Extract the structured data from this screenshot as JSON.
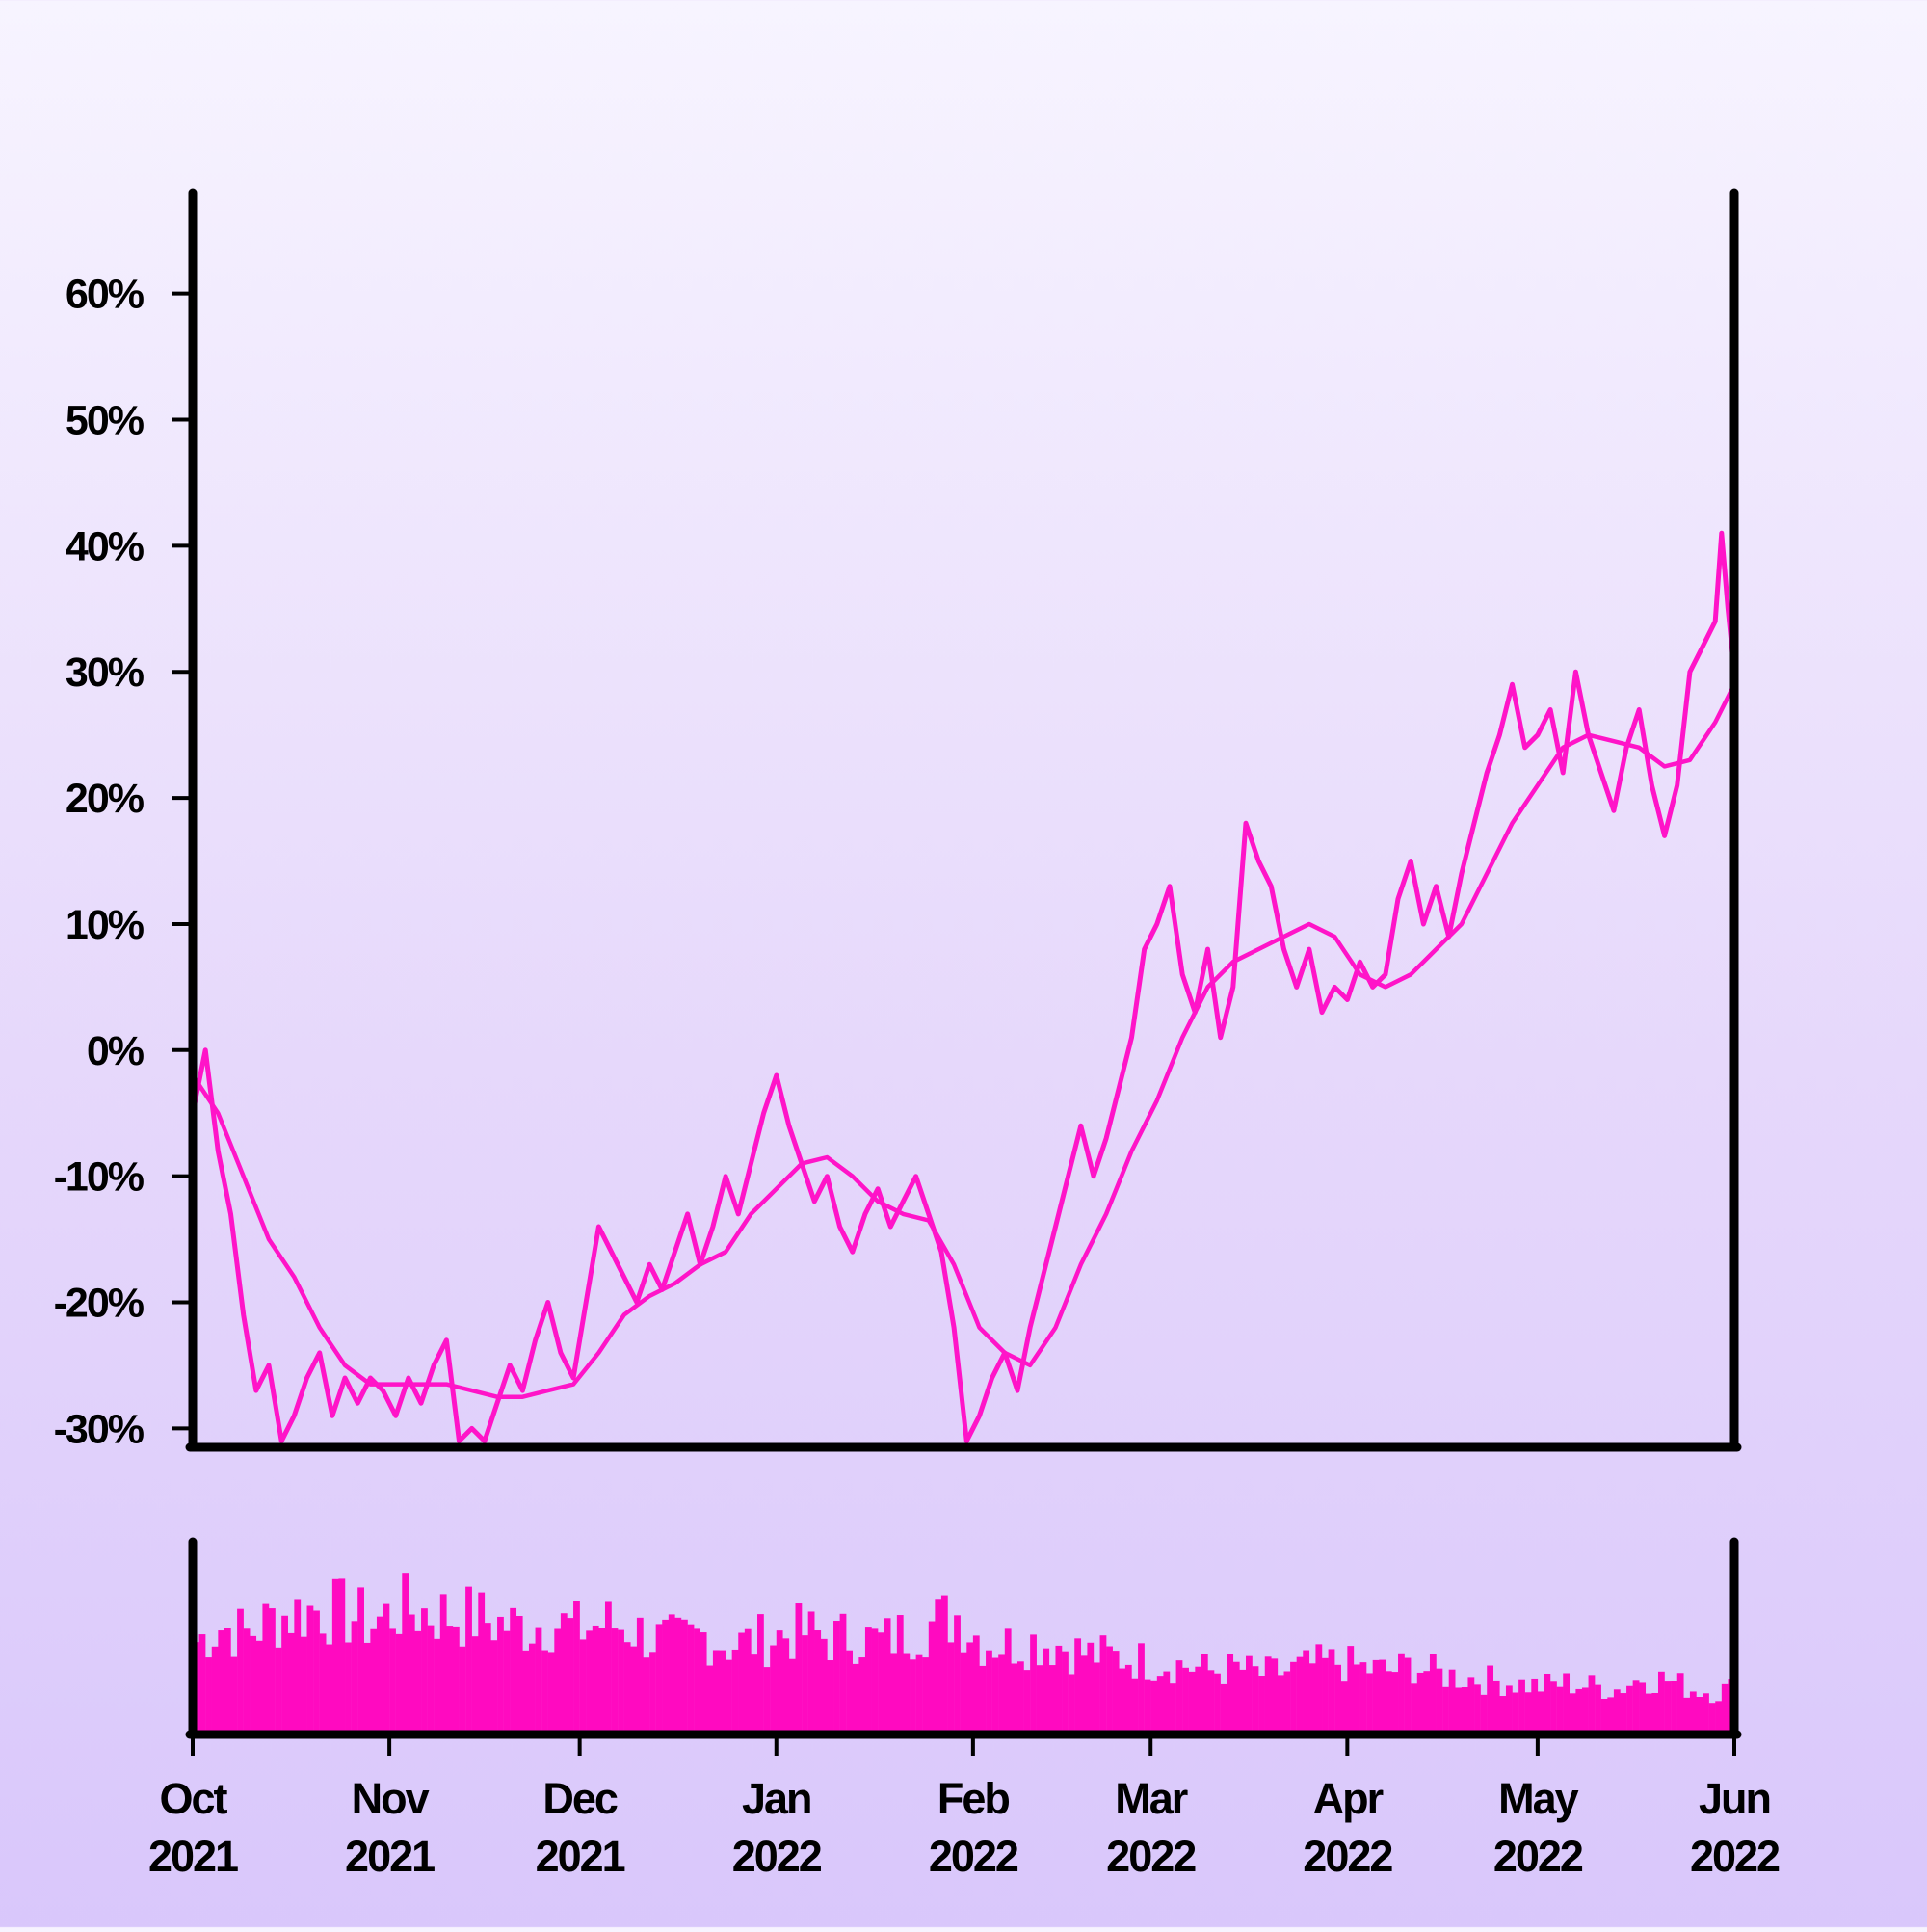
{
  "colors": {
    "line": "#ff14c8",
    "bars": "#ff0ac0",
    "axes": "#000000"
  },
  "chart_data": {
    "type": "line",
    "title": "",
    "xlabel": "",
    "ylabel": "",
    "x_range": [
      "2021-10-01",
      "2022-06-01"
    ],
    "ylim": [
      -31.5,
      68
    ],
    "y_ticks": [
      {
        "value": 60,
        "label": "60%"
      },
      {
        "value": 50,
        "label": "50%"
      },
      {
        "value": 40,
        "label": "40%"
      },
      {
        "value": 30,
        "label": "30%"
      },
      {
        "value": 20,
        "label": "20%"
      },
      {
        "value": 10,
        "label": "10%"
      },
      {
        "value": 0,
        "label": "0%"
      },
      {
        "value": -10,
        "label": "-10%"
      },
      {
        "value": -20,
        "label": "-20%"
      },
      {
        "value": -30,
        "label": "-30%"
      }
    ],
    "x_ticks": [
      {
        "date": "2021-10-01",
        "month": "Oct",
        "year": "2021"
      },
      {
        "date": "2021-11-01",
        "month": "Nov",
        "year": "2021"
      },
      {
        "date": "2021-12-01",
        "month": "Dec",
        "year": "2021"
      },
      {
        "date": "2022-01-01",
        "month": "Jan",
        "year": "2022"
      },
      {
        "date": "2022-02-01",
        "month": "Feb",
        "year": "2022"
      },
      {
        "date": "2022-03-01",
        "month": "Mar",
        "year": "2022"
      },
      {
        "date": "2022-04-01",
        "month": "Apr",
        "year": "2022"
      },
      {
        "date": "2022-05-01",
        "month": "May",
        "year": "2022"
      },
      {
        "date": "2022-06-01",
        "month": "Jun",
        "year": "2022"
      }
    ],
    "grid": false,
    "legend": "none",
    "series": [
      {
        "style": "daily",
        "points": [
          [
            "2021-10-01",
            -5
          ],
          [
            "2021-10-03",
            0
          ],
          [
            "2021-10-05",
            -8
          ],
          [
            "2021-10-07",
            -13
          ],
          [
            "2021-10-09",
            -21
          ],
          [
            "2021-10-11",
            -27
          ],
          [
            "2021-10-13",
            -25
          ],
          [
            "2021-10-15",
            -31
          ],
          [
            "2021-10-17",
            -29
          ],
          [
            "2021-10-19",
            -26
          ],
          [
            "2021-10-21",
            -24
          ],
          [
            "2021-10-23",
            -29
          ],
          [
            "2021-10-25",
            -26
          ],
          [
            "2021-10-27",
            -28
          ],
          [
            "2021-10-29",
            -26
          ],
          [
            "2021-10-31",
            -27
          ],
          [
            "2021-11-02",
            -29
          ],
          [
            "2021-11-04",
            -26
          ],
          [
            "2021-11-06",
            -28
          ],
          [
            "2021-11-08",
            -25
          ],
          [
            "2021-11-10",
            -23
          ],
          [
            "2021-11-12",
            -31
          ],
          [
            "2021-11-14",
            -30
          ],
          [
            "2021-11-16",
            -31
          ],
          [
            "2021-11-18",
            -28
          ],
          [
            "2021-11-20",
            -25
          ],
          [
            "2021-11-22",
            -27
          ],
          [
            "2021-11-24",
            -23
          ],
          [
            "2021-11-26",
            -20
          ],
          [
            "2021-11-28",
            -24
          ],
          [
            "2021-11-30",
            -26
          ],
          [
            "2021-12-02",
            -20
          ],
          [
            "2021-12-04",
            -14
          ],
          [
            "2021-12-06",
            -16
          ],
          [
            "2021-12-08",
            -18
          ],
          [
            "2021-12-10",
            -20
          ],
          [
            "2021-12-12",
            -17
          ],
          [
            "2021-12-14",
            -19
          ],
          [
            "2021-12-16",
            -16
          ],
          [
            "2021-12-18",
            -13
          ],
          [
            "2021-12-20",
            -17
          ],
          [
            "2021-12-22",
            -14
          ],
          [
            "2021-12-24",
            -10
          ],
          [
            "2021-12-26",
            -13
          ],
          [
            "2021-12-28",
            -9
          ],
          [
            "2021-12-30",
            -5
          ],
          [
            "2022-01-01",
            -2
          ],
          [
            "2022-01-03",
            -6
          ],
          [
            "2022-01-05",
            -9
          ],
          [
            "2022-01-07",
            -12
          ],
          [
            "2022-01-09",
            -10
          ],
          [
            "2022-01-11",
            -14
          ],
          [
            "2022-01-13",
            -16
          ],
          [
            "2022-01-15",
            -13
          ],
          [
            "2022-01-17",
            -11
          ],
          [
            "2022-01-19",
            -14
          ],
          [
            "2022-01-21",
            -12
          ],
          [
            "2022-01-23",
            -10
          ],
          [
            "2022-01-25",
            -13
          ],
          [
            "2022-01-27",
            -16
          ],
          [
            "2022-01-29",
            -22
          ],
          [
            "2022-01-31",
            -31
          ],
          [
            "2022-02-02",
            -29
          ],
          [
            "2022-02-04",
            -26
          ],
          [
            "2022-02-06",
            -24
          ],
          [
            "2022-02-08",
            -27
          ],
          [
            "2022-02-10",
            -22
          ],
          [
            "2022-02-12",
            -18
          ],
          [
            "2022-02-14",
            -14
          ],
          [
            "2022-02-16",
            -10
          ],
          [
            "2022-02-18",
            -6
          ],
          [
            "2022-02-20",
            -10
          ],
          [
            "2022-02-22",
            -7
          ],
          [
            "2022-02-24",
            -3
          ],
          [
            "2022-02-26",
            1
          ],
          [
            "2022-02-28",
            8
          ],
          [
            "2022-03-02",
            10
          ],
          [
            "2022-03-04",
            13
          ],
          [
            "2022-03-06",
            6
          ],
          [
            "2022-03-08",
            3
          ],
          [
            "2022-03-10",
            8
          ],
          [
            "2022-03-12",
            1
          ],
          [
            "2022-03-14",
            5
          ],
          [
            "2022-03-16",
            18
          ],
          [
            "2022-03-18",
            15
          ],
          [
            "2022-03-20",
            13
          ],
          [
            "2022-03-22",
            8
          ],
          [
            "2022-03-24",
            5
          ],
          [
            "2022-03-26",
            8
          ],
          [
            "2022-03-28",
            3
          ],
          [
            "2022-03-30",
            5
          ],
          [
            "2022-04-01",
            4
          ],
          [
            "2022-04-03",
            7
          ],
          [
            "2022-04-05",
            5
          ],
          [
            "2022-04-07",
            6
          ],
          [
            "2022-04-09",
            12
          ],
          [
            "2022-04-11",
            15
          ],
          [
            "2022-04-13",
            10
          ],
          [
            "2022-04-15",
            13
          ],
          [
            "2022-04-17",
            9
          ],
          [
            "2022-04-19",
            14
          ],
          [
            "2022-04-21",
            18
          ],
          [
            "2022-04-23",
            22
          ],
          [
            "2022-04-25",
            25
          ],
          [
            "2022-04-27",
            29
          ],
          [
            "2022-04-29",
            24
          ],
          [
            "2022-05-01",
            25
          ],
          [
            "2022-05-03",
            27
          ],
          [
            "2022-05-05",
            22
          ],
          [
            "2022-05-07",
            30
          ],
          [
            "2022-05-09",
            25
          ],
          [
            "2022-05-11",
            22
          ],
          [
            "2022-05-13",
            19
          ],
          [
            "2022-05-15",
            24
          ],
          [
            "2022-05-17",
            27
          ],
          [
            "2022-05-19",
            21
          ],
          [
            "2022-05-21",
            17
          ],
          [
            "2022-05-23",
            21
          ],
          [
            "2022-05-25",
            30
          ],
          [
            "2022-05-27",
            32
          ],
          [
            "2022-05-29",
            34
          ],
          [
            "2022-05-30",
            41
          ],
          [
            "2022-05-31",
            35
          ],
          [
            "2022-06-01",
            30
          ]
        ]
      },
      {
        "style": "smoothed",
        "points": [
          [
            "2021-10-01",
            -2
          ],
          [
            "2021-10-05",
            -5
          ],
          [
            "2021-10-09",
            -10
          ],
          [
            "2021-10-13",
            -15
          ],
          [
            "2021-10-17",
            -18
          ],
          [
            "2021-10-21",
            -22
          ],
          [
            "2021-10-25",
            -25
          ],
          [
            "2021-10-29",
            -26.5
          ],
          [
            "2021-11-02",
            -26.5
          ],
          [
            "2021-11-06",
            -26.5
          ],
          [
            "2021-11-10",
            -26.5
          ],
          [
            "2021-11-14",
            -27
          ],
          [
            "2021-11-18",
            -27.5
          ],
          [
            "2021-11-22",
            -27.5
          ],
          [
            "2021-11-26",
            -27
          ],
          [
            "2021-11-30",
            -26.5
          ],
          [
            "2021-12-04",
            -24
          ],
          [
            "2021-12-08",
            -21
          ],
          [
            "2021-12-12",
            -19.5
          ],
          [
            "2021-12-16",
            -18.5
          ],
          [
            "2021-12-20",
            -17
          ],
          [
            "2021-12-24",
            -16
          ],
          [
            "2021-12-28",
            -13
          ],
          [
            "2022-01-01",
            -11
          ],
          [
            "2022-01-05",
            -9
          ],
          [
            "2022-01-09",
            -8.5
          ],
          [
            "2022-01-13",
            -10
          ],
          [
            "2022-01-17",
            -12
          ],
          [
            "2022-01-21",
            -13
          ],
          [
            "2022-01-25",
            -13.5
          ],
          [
            "2022-01-29",
            -17
          ],
          [
            "2022-02-02",
            -22
          ],
          [
            "2022-02-06",
            -24
          ],
          [
            "2022-02-10",
            -25
          ],
          [
            "2022-02-14",
            -22
          ],
          [
            "2022-02-18",
            -17
          ],
          [
            "2022-02-22",
            -13
          ],
          [
            "2022-02-26",
            -8
          ],
          [
            "2022-03-02",
            -4
          ],
          [
            "2022-03-06",
            1
          ],
          [
            "2022-03-10",
            5
          ],
          [
            "2022-03-14",
            7
          ],
          [
            "2022-03-18",
            8
          ],
          [
            "2022-03-22",
            9
          ],
          [
            "2022-03-26",
            10
          ],
          [
            "2022-03-30",
            9
          ],
          [
            "2022-04-03",
            6
          ],
          [
            "2022-04-07",
            5
          ],
          [
            "2022-04-11",
            6
          ],
          [
            "2022-04-15",
            8
          ],
          [
            "2022-04-19",
            10
          ],
          [
            "2022-04-23",
            14
          ],
          [
            "2022-04-27",
            18
          ],
          [
            "2022-05-01",
            21
          ],
          [
            "2022-05-05",
            24
          ],
          [
            "2022-05-09",
            25
          ],
          [
            "2022-05-13",
            24.5
          ],
          [
            "2022-05-17",
            24
          ],
          [
            "2022-05-21",
            22.5
          ],
          [
            "2022-05-25",
            23
          ],
          [
            "2022-05-29",
            26
          ],
          [
            "2022-06-01",
            29
          ]
        ]
      }
    ],
    "volume": {
      "type": "bar",
      "ylim": [
        0,
        100
      ],
      "points": [
        [
          "2021-10-01",
          60
        ],
        [
          "2021-10-05",
          70
        ],
        [
          "2021-10-09",
          65
        ],
        [
          "2021-10-13",
          75
        ],
        [
          "2021-10-17",
          80
        ],
        [
          "2021-10-21",
          82
        ],
        [
          "2021-10-25",
          78
        ],
        [
          "2021-10-29",
          72
        ],
        [
          "2021-11-02",
          82
        ],
        [
          "2021-11-06",
          80
        ],
        [
          "2021-11-10",
          78
        ],
        [
          "2021-11-14",
          76
        ],
        [
          "2021-11-18",
          72
        ],
        [
          "2021-11-22",
          70
        ],
        [
          "2021-11-26",
          74
        ],
        [
          "2021-11-30",
          68
        ],
        [
          "2021-12-04",
          72
        ],
        [
          "2021-12-08",
          70
        ],
        [
          "2021-12-12",
          62
        ],
        [
          "2021-12-16",
          60
        ],
        [
          "2021-12-20",
          64
        ],
        [
          "2021-12-24",
          58
        ],
        [
          "2021-12-28",
          60
        ],
        [
          "2022-01-01",
          64
        ],
        [
          "2022-01-05",
          66
        ],
        [
          "2022-01-09",
          62
        ],
        [
          "2022-01-13",
          64
        ],
        [
          "2022-01-17",
          60
        ],
        [
          "2022-01-21",
          66
        ],
        [
          "2022-01-25",
          72
        ],
        [
          "2022-01-29",
          78
        ],
        [
          "2022-02-02",
          60
        ],
        [
          "2022-02-06",
          58
        ],
        [
          "2022-02-10",
          60
        ],
        [
          "2022-02-14",
          58
        ],
        [
          "2022-02-18",
          52
        ],
        [
          "2022-02-22",
          50
        ],
        [
          "2022-02-26",
          48
        ],
        [
          "2022-03-02",
          46
        ],
        [
          "2022-03-06",
          44
        ],
        [
          "2022-03-10",
          40
        ],
        [
          "2022-03-14",
          42
        ],
        [
          "2022-03-18",
          38
        ],
        [
          "2022-03-22",
          40
        ],
        [
          "2022-03-26",
          44
        ],
        [
          "2022-03-30",
          46
        ],
        [
          "2022-04-03",
          42
        ],
        [
          "2022-04-07",
          40
        ],
        [
          "2022-04-11",
          44
        ],
        [
          "2022-04-15",
          38
        ],
        [
          "2022-04-19",
          36
        ],
        [
          "2022-04-23",
          34
        ],
        [
          "2022-04-27",
          32
        ],
        [
          "2022-05-01",
          30
        ],
        [
          "2022-05-05",
          32
        ],
        [
          "2022-05-09",
          30
        ],
        [
          "2022-05-13",
          28
        ],
        [
          "2022-05-17",
          36
        ],
        [
          "2022-05-21",
          34
        ],
        [
          "2022-05-25",
          28
        ],
        [
          "2022-05-29",
          26
        ],
        [
          "2022-06-01",
          30
        ]
      ]
    }
  }
}
